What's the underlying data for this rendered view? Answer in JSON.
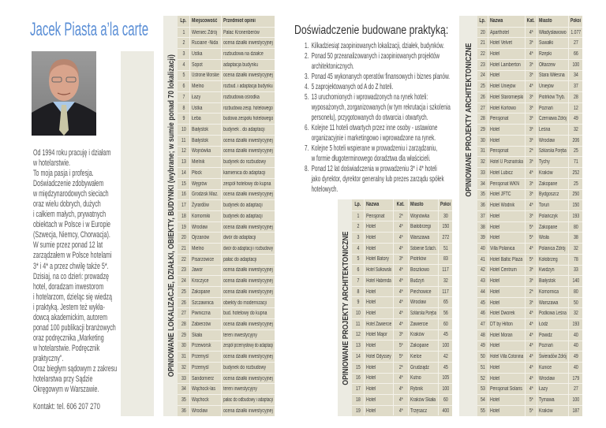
{
  "profile": {
    "title": "Jacek Piasta a’la carte",
    "photo_alt": "portrait",
    "bio_lines": [
      "Od 1994 roku pracuję i działam",
      "w hotelarstwie.",
      "To moja pasja i profesja.",
      "Doświadczenie zdobywałem",
      "w międzynarodowych sieciach",
      "oraz wielu dobrych, dużych",
      "i całkiem małych, prywatnych",
      "obiektach w Polsce i w Europie",
      "(Szwecja, Niemcy, Chorwacja).",
      "W sumie przez ponad 12 lat",
      "zarządzałem w Polsce hotelami",
      "3* i 4* a przez chwilę także 5*.",
      "Dzisiaj, na co dzień: prowadzę",
      "hotel, doradzam inwestorom",
      "i hotelarzom, dzieląc się  wiedzą",
      "i praktyką. Jestem też wykła-",
      "dowcą akademickim, autorem",
      "ponad 100 publikacji branżowych",
      "oraz podręcznika „Marketing",
      "w hotelarstwie. Podręcznik",
      "praktyczny”.",
      "Oraz biegłym sądowym z zakresu",
      "hotelarstwa przy Sądzie",
      "Okręgowym w Warszawie."
    ],
    "contact": "Kontakt: tel. 606 207 270"
  },
  "locations": {
    "band_label": "OPINIOWANE LOKALIZACJE, DZIAŁKI, OBIEKTY, BUDYNKI (wybrane; w sumie ponad 70 lokalizacji)",
    "headers": [
      "Lp.",
      "Miejscowość",
      "Przedmiot opinii"
    ],
    "rows": [
      [
        "1",
        "Wieniec Zdrój",
        "Pałac Kronenberów"
      ],
      [
        "2",
        "Ruciane -Nida",
        "ocena działki inwestycyjnej"
      ],
      [
        "3",
        "Ustka",
        "rozbudowa na działce"
      ],
      [
        "4",
        "Sopot",
        "adaptacja budynku"
      ],
      [
        "5",
        "Ustronie Morskie",
        "ocena działki inwestycyjnej"
      ],
      [
        "6",
        "Mielno",
        "rozbud. i adaptacja  budynku"
      ],
      [
        "7",
        "Łazy",
        "rozbudowa ośrodka"
      ],
      [
        "8",
        "Ustka",
        "rozbudowa zesp. hotelowego"
      ],
      [
        "9",
        "Łeba",
        "budowa zespołu hotelowego"
      ],
      [
        "10",
        "Białystok",
        "budynek . do adaptacji"
      ],
      [
        "11",
        "Białystok",
        "ocena działki inwestycyjnej"
      ],
      [
        "12",
        "Wojnówka",
        "ocena działki inwestycyjnej"
      ],
      [
        "13",
        "Mielnik",
        "budynek do rozbudowy"
      ],
      [
        "14",
        "Płock",
        "kamienica do adaptacji"
      ],
      [
        "15",
        "Węgrów",
        "zespół hotelowy do kupna"
      ],
      [
        "16",
        "Grodzisk Maz.",
        "ocena działki inwestycyjnej"
      ],
      [
        "17",
        "Żyrardów",
        "budynek do adaptacji"
      ],
      [
        "18",
        "Komorniki",
        "budynek do adaptacji"
      ],
      [
        "19",
        "Wrocław",
        "ocena działki inwestycyjnej"
      ],
      [
        "20",
        "Ojrzanów",
        "dwór do adaptacji"
      ],
      [
        "21",
        "Mielno",
        "dwór do adaptacji i rozbudowy"
      ],
      [
        "22",
        "Pisarzowice",
        "pałac do adaptacji"
      ],
      [
        "23",
        "Jawor",
        "ocena działki inwestycyjnej"
      ],
      [
        "24",
        "Kroczyce",
        "ocena działki inwestycyjnej"
      ],
      [
        "25",
        "Zakopane",
        "ocena działki inwestycyjnej"
      ],
      [
        "26",
        "Szczawnica",
        "obiekty do modernizacji"
      ],
      [
        "27",
        "Piwniczna",
        "bud. hotelowy do kupna"
      ],
      [
        "28",
        "Zabierzów",
        "ocena działki inwestycyjnej"
      ],
      [
        "29",
        "Skała",
        "teren inwestycyjny"
      ],
      [
        "30",
        "Przeworsk",
        "zespół przemysłowy do adaptacji"
      ],
      [
        "31",
        "Przemyśl",
        "ocena działki inwestycyjnej"
      ],
      [
        "32",
        "Przemyśl",
        "budynek do rozbudowy"
      ],
      [
        "33",
        "Sandomierz",
        "ocena działki inwestycyjnej"
      ],
      [
        "34",
        "Wąchock-las",
        "teren inwestycyjny"
      ],
      [
        "35",
        "Wąchock",
        "pałac do odbudowy i adaptacji"
      ],
      [
        "36",
        "Wrocław",
        "ocena działki inwestycyjnej"
      ]
    ]
  },
  "experience": {
    "heading": "Doświadczenie budowane praktyką:",
    "items": [
      {
        "num": "1.",
        "lines": [
          "Kilkadziesiąt zaopiniowanych lokalizacji, działek, budynków."
        ]
      },
      {
        "num": "2.",
        "lines": [
          "Ponad 50 przeanalizowanych i zaopiniowanych projektów",
          "architektonicznych."
        ]
      },
      {
        "num": "3.",
        "lines": [
          "Ponad 45 wykonanych operatów finansowych i biznes planów."
        ]
      },
      {
        "num": "4.",
        "lines": [
          "5 zaprojektowanych od A do Z hoteli."
        ]
      },
      {
        "num": "5.",
        "lines": [
          "13 uruchomionych i wprowadzonych na rynek hoteli:",
          "wyposażonych, zorganizowanych (w tym rekrutacja i szkolenia",
          "personelu), przygotowanych do otwarcia i otwartych."
        ]
      },
      {
        "num": "6.",
        "lines": [
          "Kolejne 11 hoteli otwartych przez inne osoby - ustawione",
          "organizacyjnie i marketingowo i wprowadzone na rynek."
        ]
      },
      {
        "num": "7.",
        "lines": [
          "Kolejne 5 hoteli wspierane w prowadzeniu i zarządzaniu,",
          "w formie długoterminowego doradztwa dla właścicieli."
        ]
      },
      {
        "num": "8.",
        "lines": [
          "Ponad 12 lat doświadczenia w prowadzeniu 3* i 4* hoteli",
          "jako dyrektor, dyrektor generalny lub prezes zarządu spółek",
          "hotelowych."
        ]
      }
    ]
  },
  "projects_a": {
    "band_label": "OPINIOWANE PROJEKTY ARCHITEKTONICZNE",
    "headers": [
      "Lp.",
      "Nazwa",
      "Kat.",
      "Miasto",
      "Pokoi"
    ],
    "rows": [
      [
        "1",
        "Pensjonat",
        "2*",
        "Wojnówka",
        "30"
      ],
      [
        "2",
        "Hotel",
        "4*",
        "Białobrzegi",
        "150"
      ],
      [
        "3",
        "Hotel",
        "4*",
        "Warszawa",
        "272"
      ],
      [
        "4",
        "Hotel",
        "4*",
        "Sobienie Szlach.",
        "51"
      ],
      [
        "5",
        "Hotel Batory",
        "3*",
        "Piotrków",
        "83"
      ],
      [
        "6",
        "Hotel Sułkowski",
        "4*",
        "Boszkowo",
        "117"
      ],
      [
        "7",
        "Hotel Habenda",
        "4*",
        "Budzyń",
        "32"
      ],
      [
        "8",
        "Hotel",
        "4*",
        "Piechowice",
        "117"
      ],
      [
        "9",
        "Hotel",
        "4*",
        "Wrocław",
        "65"
      ],
      [
        "10",
        "Hotel",
        "4*",
        "Szklarska Poręba",
        "56"
      ],
      [
        "11",
        "Hotel Zawiercie",
        "4*",
        "Zawiercie",
        "60"
      ],
      [
        "12",
        "Hotel Major",
        "3*",
        "Kraków",
        "45"
      ],
      [
        "13",
        "Hotel",
        "5*",
        "Zakopane",
        "100"
      ],
      [
        "14",
        "Hotel Odyssey",
        "5*",
        "Kielce",
        "42"
      ],
      [
        "15",
        "Hotel",
        "2*",
        "Grudziądz",
        "45"
      ],
      [
        "16",
        "Hotel",
        "4*",
        "Kutno",
        "105"
      ],
      [
        "17",
        "Hotel",
        "4*",
        "Rybnik",
        "100"
      ],
      [
        "18",
        "Hotel",
        "4*",
        "Kraków Skała",
        "60"
      ],
      [
        "19",
        "Hotel",
        "4*",
        "Trzęsacz",
        "400"
      ]
    ]
  },
  "projects_b": {
    "band_label": "OPINIOWANE PROJEKTY ARCHITEKTONICZNE",
    "headers": [
      "Lp.",
      "Nazwa",
      "Kat.",
      "Miasto",
      "Pokoi"
    ],
    "rows": [
      [
        "20",
        "Aparthotel",
        "4*",
        "Władysławowo",
        "1.077"
      ],
      [
        "21",
        "Hotel Velvet",
        "3*",
        "Suwałki",
        "27"
      ],
      [
        "22",
        "Hotel",
        "4*",
        "Rzepki",
        "66"
      ],
      [
        "23",
        "Hotel Lamberton",
        "3*",
        "Ołtarzew",
        "100"
      ],
      [
        "24",
        "Hotel",
        "3*",
        "Stara Wiłesna",
        "34"
      ],
      [
        "25",
        "Hotel Uniejów",
        "4*",
        "Uniejów",
        "37"
      ],
      [
        "26",
        "Hotel Staromiejski",
        "3*",
        "Piotrków Tryb.",
        "28"
      ],
      [
        "27",
        "Hotel Kortowo",
        "3*",
        "Poznań",
        "12"
      ],
      [
        "28",
        "Pensjonat",
        "3*",
        "Czerniawa Zdrój",
        "49"
      ],
      [
        "29",
        "Hotel",
        "3*",
        "Leśna",
        "32"
      ],
      [
        "30",
        "Hotel",
        "3*",
        "Wrocław",
        "206"
      ],
      [
        "31",
        "Pensjonat",
        "2*",
        "Szklarska Poręba",
        "25"
      ],
      [
        "32",
        "Hotel U Poznańska",
        "3*",
        "Tychy",
        "71"
      ],
      [
        "33",
        "Hotel Lubicz",
        "4*",
        "Kraków",
        "252"
      ],
      [
        "34",
        "Pensjonat WKN",
        "3*",
        "Zakopane",
        "25"
      ],
      [
        "35",
        "Hotel JFTC",
        "3*",
        "Bydgoszcz",
        "250"
      ],
      [
        "36",
        "Hotel Wodnik",
        "4*",
        "Toruń",
        "150"
      ],
      [
        "37",
        "Hotel",
        "3*",
        "Polańczyk",
        "193"
      ],
      [
        "38",
        "Hotel",
        "5*",
        "Zakopane",
        "80"
      ],
      [
        "39",
        "Hotel",
        "5*",
        "Wisła",
        "38"
      ],
      [
        "40",
        "Villa Polanica",
        "4*",
        "Polanica Zdrój",
        "32"
      ],
      [
        "41",
        "Hotel Baltic Plaza",
        "5*",
        "Kołobrzeg",
        "78"
      ],
      [
        "42",
        "Hotel Centrum",
        "3*",
        "Kwidzyn",
        "33"
      ],
      [
        "43",
        "Hotel",
        "3*",
        "Białystok",
        "140"
      ],
      [
        "44",
        "Hotel",
        "2*",
        "Komornica",
        "80"
      ],
      [
        "45",
        "Hotel",
        "3*",
        "Warszawa",
        "50"
      ],
      [
        "46",
        "Hotel Dworek",
        "4*",
        "Podkowa Leśna",
        "32"
      ],
      [
        "47",
        "DT  by Hilton",
        "4*",
        "Łódź",
        "193"
      ],
      [
        "48",
        "Hotel Moran",
        "4*",
        "Powidz",
        "40"
      ],
      [
        "49",
        "Hotel",
        "4*",
        "Poznań",
        "40"
      ],
      [
        "50",
        "Hotel Villa Cotonina",
        "4*",
        "Świeradów Zdrój",
        "49"
      ],
      [
        "51",
        "Hotel",
        "4*",
        "Kunice",
        "40"
      ],
      [
        "52",
        "Hotel",
        "4*",
        "Wrocław",
        "179"
      ],
      [
        "53",
        "Pensjonat Solaris",
        "4*",
        "Łazy",
        "27"
      ],
      [
        "54",
        "Hotel",
        "5*",
        "Tymawa",
        "100"
      ],
      [
        "55",
        "Hotel",
        "5*",
        "Kraków",
        "187"
      ]
    ]
  },
  "colors": {
    "title": "#5b8fd6",
    "table_bg": "#dfdbc8",
    "band_bg": "#ecebe2"
  }
}
